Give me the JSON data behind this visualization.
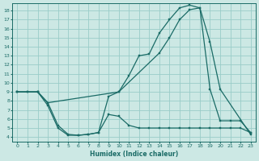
{
  "xlabel": "Humidex (Indice chaleur)",
  "bg_color": "#cce8e4",
  "grid_color": "#99ccc8",
  "line_color": "#1a6b66",
  "xlim": [
    -0.5,
    23.5
  ],
  "ylim": [
    3.5,
    18.8
  ],
  "xticks": [
    0,
    1,
    2,
    3,
    4,
    5,
    6,
    7,
    8,
    9,
    10,
    11,
    12,
    13,
    14,
    15,
    16,
    17,
    18,
    19,
    20,
    21,
    22,
    23
  ],
  "yticks": [
    4,
    5,
    6,
    7,
    8,
    9,
    10,
    11,
    12,
    13,
    14,
    15,
    16,
    17,
    18
  ],
  "curve1_x": [
    0,
    1,
    2,
    3,
    4,
    5,
    6,
    7,
    8,
    9,
    10,
    11,
    12,
    13,
    14,
    15,
    16,
    17,
    18,
    19,
    20,
    21,
    22,
    23
  ],
  "curve1_y": [
    9,
    9,
    9,
    7.5,
    5,
    4.2,
    4.2,
    4.3,
    4.5,
    8.5,
    9.0,
    10.8,
    13.0,
    13.2,
    15.5,
    17.0,
    18.3,
    18.6,
    18.3,
    9.3,
    5.8,
    5.8,
    5.8,
    4.5
  ],
  "curve2_x": [
    0,
    2,
    3,
    10,
    14,
    15,
    16,
    17,
    18,
    19,
    20,
    23
  ],
  "curve2_y": [
    9,
    9.0,
    7.8,
    9.0,
    13.3,
    15.0,
    17.0,
    18.1,
    18.3,
    14.5,
    9.3,
    4.3
  ],
  "curve3_x": [
    0,
    1,
    2,
    3,
    4,
    5,
    6,
    7,
    8,
    9,
    10,
    11,
    12,
    13,
    14,
    15,
    16,
    17,
    18,
    19,
    20,
    21,
    22,
    23
  ],
  "curve3_y": [
    9,
    9,
    9,
    7.8,
    5.3,
    4.3,
    4.2,
    4.3,
    4.5,
    6.5,
    6.3,
    5.3,
    5.0,
    5.0,
    5.0,
    5.0,
    5.0,
    5.0,
    5.0,
    5.0,
    5.0,
    5.0,
    5.0,
    4.5
  ]
}
